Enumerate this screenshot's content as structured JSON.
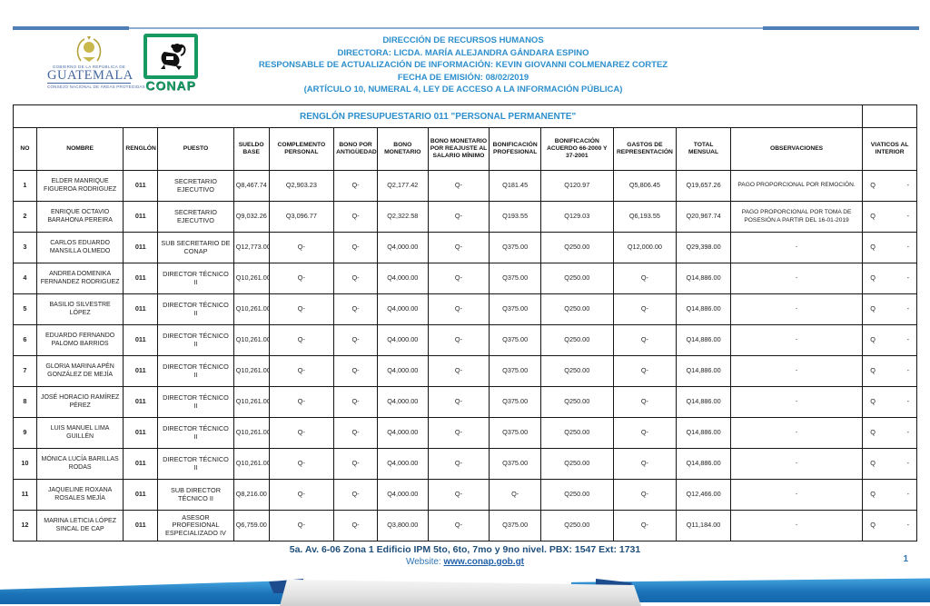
{
  "header": {
    "gov_logo": {
      "top": "GOBIERNO DE LA REPÚBLICA DE",
      "name": "GUATEMALA",
      "bottom": "CONSEJO NACIONAL DE ÁREAS PROTEGIDAS"
    },
    "conap_logo": {
      "label": "CONAP"
    },
    "lines": [
      "DIRECCIÓN DE RECURSOS HUMANOS",
      "DIRECTORA: LICDA. MARÍA ALEJANDRA GÁNDARA ESPINO",
      "RESPONSABLE DE ACTUALIZACIÓN DE INFORMACIÓN: KEVIN GIOVANNI COLMENAREZ CORTEZ",
      "FECHA DE EMISIÓN: 08/02/2019",
      "(ARTÍCULO 10, NUMERAL 4, LEY DE ACCESO A LA INFORMACIÓN PÚBLICA)"
    ]
  },
  "table": {
    "title": "RENGLÓN PRESUPUESTARIO 011 \"PERSONAL PERMANENTE\"",
    "columns": [
      {
        "key": "no",
        "label": "NO",
        "width": "2.6%"
      },
      {
        "key": "nombre",
        "label": "NOMBRE",
        "width": "9.6%"
      },
      {
        "key": "renglon",
        "label": "RENGLÓN",
        "width": "3.8%"
      },
      {
        "key": "puesto",
        "label": "PUESTO",
        "width": "8.4%"
      },
      {
        "key": "sueldo",
        "label": "SUELDO BASE",
        "width": "3.9%"
      },
      {
        "key": "complemento",
        "label": "COMPLEMENTO PERSONAL",
        "width": "7.2%"
      },
      {
        "key": "antiguedad",
        "label": "BONO POR ANTIGÜEDAD",
        "width": "4.8%"
      },
      {
        "key": "bono",
        "label": "BONO MONETARIO",
        "width": "5.6%"
      },
      {
        "key": "reajuste",
        "label": "BONO MONETARIO POR REAJUSTE AL SALARIO MÍNIMO",
        "width": "6.8%"
      },
      {
        "key": "bonif_prof",
        "label": "BONIFICACIÓN PROFESIONAL",
        "width": "5.7%"
      },
      {
        "key": "bonif_acuerdo",
        "label": "BONIFICACIÓN ACUERDO 66-2000 Y 37-2001",
        "width": "8.0%"
      },
      {
        "key": "gastos",
        "label": "GASTOS DE REPRESENTACIÓN",
        "width": "7.0%"
      },
      {
        "key": "total",
        "label": "TOTAL MENSUAL",
        "width": "6.0%"
      },
      {
        "key": "observaciones",
        "label": "OBSERVACIONES",
        "width": "14.6%"
      },
      {
        "key": "viaticos",
        "label": "VIATICOS AL INTERIOR",
        "width": "6.0%"
      }
    ],
    "rows": [
      {
        "no": "1",
        "nombre": "ELDER MANRIQUE FIGUEROA RODRIGUEZ",
        "renglon": "011",
        "puesto": "SECRETARIO EJECUTIVO",
        "sueldo": "Q8,467.74",
        "complemento": "Q2,903.23",
        "antiguedad": "Q-",
        "bono": "Q2,177.42",
        "reajuste": "Q-",
        "bonif_prof": "Q181.45",
        "bonif_acuerdo": "Q120.97",
        "gastos": "Q5,806.45",
        "total": "Q19,657.26",
        "observaciones": "PAGO PROPORCIONAL POR REMOCIÓN.",
        "viaticos_q": "Q",
        "viaticos_val": "-"
      },
      {
        "no": "2",
        "nombre": "ENRIQUE OCTAVIO BARAHONA PEREIRA",
        "renglon": "011",
        "puesto": "SECRETARIO EJECUTIVO",
        "sueldo": "Q9,032.26",
        "complemento": "Q3,096.77",
        "antiguedad": "Q-",
        "bono": "Q2,322.58",
        "reajuste": "Q-",
        "bonif_prof": "Q193.55",
        "bonif_acuerdo": "Q129.03",
        "gastos": "Q6,193.55",
        "total": "Q20,967.74",
        "observaciones": "PAGO PROPORCIONAL POR TOMA DE POSESIÓN A PARTIR DEL 16-01-2019",
        "viaticos_q": "Q",
        "viaticos_val": "-"
      },
      {
        "no": "3",
        "nombre": "CARLOS EDUARDO MANSILLA OLMEDO",
        "renglon": "011",
        "puesto": "SUB SECRETARIO DE CONAP",
        "sueldo": "Q12,773.00",
        "complemento": "Q-",
        "antiguedad": "Q-",
        "bono": "Q4,000.00",
        "reajuste": "Q-",
        "bonif_prof": "Q375.00",
        "bonif_acuerdo": "Q250.00",
        "gastos": "Q12,000.00",
        "total": "Q29,398.00",
        "observaciones": "-",
        "viaticos_q": "Q",
        "viaticos_val": "-"
      },
      {
        "no": "4",
        "nombre": "ANDREA DOMENIKA FERNANDEZ RODRIGUEZ",
        "renglon": "011",
        "puesto": "DIRECTOR TÉCNICO II",
        "sueldo": "Q10,261.00",
        "complemento": "Q-",
        "antiguedad": "Q-",
        "bono": "Q4,000.00",
        "reajuste": "Q-",
        "bonif_prof": "Q375.00",
        "bonif_acuerdo": "Q250.00",
        "gastos": "Q-",
        "total": "Q14,886.00",
        "observaciones": "-",
        "viaticos_q": "Q",
        "viaticos_val": "-"
      },
      {
        "no": "5",
        "nombre": "BASILIO SILVESTRE LÓPEZ",
        "renglon": "011",
        "puesto": "DIRECTOR TÉCNICO II",
        "sueldo": "Q10,261.00",
        "complemento": "Q-",
        "antiguedad": "Q-",
        "bono": "Q4,000.00",
        "reajuste": "Q-",
        "bonif_prof": "Q375.00",
        "bonif_acuerdo": "Q250.00",
        "gastos": "Q-",
        "total": "Q14,886.00",
        "observaciones": "-",
        "viaticos_q": "Q",
        "viaticos_val": "-"
      },
      {
        "no": "6",
        "nombre": "EDUARDO FERNANDO PALOMO BARRIOS",
        "renglon": "011",
        "puesto": "DIRECTOR TÉCNICO II",
        "sueldo": "Q10,261.00",
        "complemento": "Q-",
        "antiguedad": "Q-",
        "bono": "Q4,000.00",
        "reajuste": "Q-",
        "bonif_prof": "Q375.00",
        "bonif_acuerdo": "Q250.00",
        "gastos": "Q-",
        "total": "Q14,886.00",
        "observaciones": "-",
        "viaticos_q": "Q",
        "viaticos_val": "-"
      },
      {
        "no": "7",
        "nombre": "GLORIA MARINA APÉN GONZÁLEZ DE MEJÍA",
        "renglon": "011",
        "puesto": "DIRECTOR TÉCNICO II",
        "sueldo": "Q10,261.00",
        "complemento": "Q-",
        "antiguedad": "Q-",
        "bono": "Q4,000.00",
        "reajuste": "Q-",
        "bonif_prof": "Q375.00",
        "bonif_acuerdo": "Q250.00",
        "gastos": "Q-",
        "total": "Q14,886.00",
        "observaciones": "-",
        "viaticos_q": "Q",
        "viaticos_val": "-"
      },
      {
        "no": "8",
        "nombre": "JOSÉ HORACIO RAMÍREZ PÉREZ",
        "renglon": "011",
        "puesto": "DIRECTOR TÉCNICO II",
        "sueldo": "Q10,261.00",
        "complemento": "Q-",
        "antiguedad": "Q-",
        "bono": "Q4,000.00",
        "reajuste": "Q-",
        "bonif_prof": "Q375.00",
        "bonif_acuerdo": "Q250.00",
        "gastos": "Q-",
        "total": "Q14,886.00",
        "observaciones": "-",
        "viaticos_q": "Q",
        "viaticos_val": "-"
      },
      {
        "no": "9",
        "nombre": "LUIS MANUEL LIMA GUILLÉN",
        "renglon": "011",
        "puesto": "DIRECTOR TÉCNICO II",
        "sueldo": "Q10,261.00",
        "complemento": "Q-",
        "antiguedad": "Q-",
        "bono": "Q4,000.00",
        "reajuste": "Q-",
        "bonif_prof": "Q375.00",
        "bonif_acuerdo": "Q250.00",
        "gastos": "Q-",
        "total": "Q14,886.00",
        "observaciones": "-",
        "viaticos_q": "Q",
        "viaticos_val": "-"
      },
      {
        "no": "10",
        "nombre": "MÓNICA LUCÍA BARILLAS RODAS",
        "renglon": "011",
        "puesto": "DIRECTOR TÉCNICO II",
        "sueldo": "Q10,261.00",
        "complemento": "Q-",
        "antiguedad": "Q-",
        "bono": "Q4,000.00",
        "reajuste": "Q-",
        "bonif_prof": "Q375.00",
        "bonif_acuerdo": "Q250.00",
        "gastos": "Q-",
        "total": "Q14,886.00",
        "observaciones": "-",
        "viaticos_q": "Q",
        "viaticos_val": "-"
      },
      {
        "no": "11",
        "nombre": "JAQUELINE ROXANA ROSALES MEJÍA",
        "renglon": "011",
        "puesto": "SUB DIRECTOR TÉCNICO II",
        "sueldo": "Q8,216.00",
        "complemento": "Q-",
        "antiguedad": "Q-",
        "bono": "Q4,000.00",
        "reajuste": "Q-",
        "bonif_prof": "Q-",
        "bonif_acuerdo": "Q250.00",
        "gastos": "Q-",
        "total": "Q12,466.00",
        "observaciones": "-",
        "viaticos_q": "Q",
        "viaticos_val": "-"
      },
      {
        "no": "12",
        "nombre": "MARINA LETICIA LÓPEZ SINCAL DE CAP",
        "renglon": "011",
        "puesto": "ASESOR PROFESIONAL ESPECIALIZADO IV",
        "sueldo": "Q6,759.00",
        "complemento": "Q-",
        "antiguedad": "Q-",
        "bono": "Q3,800.00",
        "reajuste": "Q-",
        "bonif_prof": "Q375.00",
        "bonif_acuerdo": "Q250.00",
        "gastos": "Q-",
        "total": "Q11,184.00",
        "observaciones": "-",
        "viaticos_q": "Q",
        "viaticos_val": "-"
      }
    ]
  },
  "footer": {
    "address": "5a. Av. 6-06 Zona 1 Edificio IPM 5to, 6to, 7mo y 9no nivel. PBX: 1547 Ext: 1731",
    "website_label": "Website:",
    "website_url": "www.conap.gob.gt",
    "page_number": "1"
  },
  "colors": {
    "header_blue": "#2d8fcc",
    "footer_navy": "#1f4e79",
    "link_blue": "#1f5fa8",
    "conap_green": "#169a62",
    "ribbon_blue": "#1c74b8",
    "ribbon_fold": "#1c4c8e"
  }
}
